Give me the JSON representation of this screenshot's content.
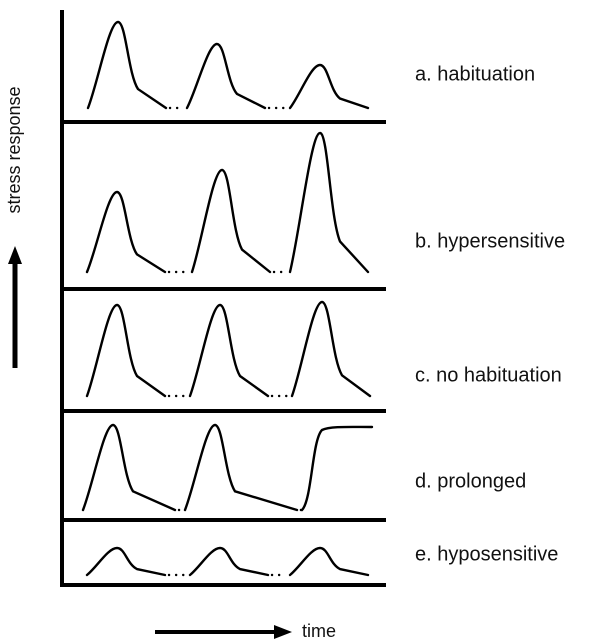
{
  "axis": {
    "y_label": "stress response",
    "x_label": "time"
  },
  "panels": [
    {
      "label": "a. habituation"
    },
    {
      "label": "b. hypersensitive"
    },
    {
      "label": "c. no habituation"
    },
    {
      "label": "d. prolonged"
    },
    {
      "label": "e. hyposensitive"
    }
  ]
}
